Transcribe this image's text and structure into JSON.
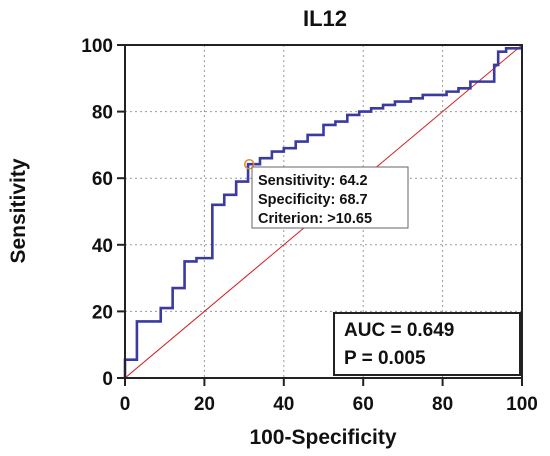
{
  "chart_data": {
    "type": "line",
    "title": "IL12",
    "xlabel": "100-Specificity",
    "ylabel": "Sensitivity",
    "xlim": [
      0,
      100
    ],
    "ylim": [
      0,
      100
    ],
    "x_ticks": [
      0,
      20,
      40,
      60,
      80,
      100
    ],
    "y_ticks": [
      0,
      20,
      40,
      60,
      80,
      100
    ],
    "grid": true,
    "colors": {
      "roc": "#3a3aa0",
      "reference": "#d62020",
      "marker": "#e08a2a"
    },
    "series": [
      {
        "x": [
          0,
          0,
          3,
          3,
          9,
          9,
          12,
          12,
          15,
          15,
          18,
          18,
          22,
          22,
          25,
          25,
          28,
          28,
          31,
          31,
          34,
          34,
          37,
          37,
          40,
          40,
          43,
          43,
          46,
          46,
          50,
          50,
          53,
          53,
          56,
          56,
          59,
          59,
          62,
          62,
          65,
          65,
          68,
          68,
          72,
          72,
          75,
          75,
          81,
          81,
          84,
          84,
          87,
          87,
          93,
          93,
          94,
          94,
          96,
          96,
          100
        ],
        "y": [
          0,
          5.5,
          5.5,
          17,
          17,
          21,
          21,
          27,
          27,
          35,
          35,
          36,
          36,
          52,
          52,
          55,
          55,
          59,
          59,
          64.2,
          64.2,
          66,
          66,
          68,
          68,
          69,
          69,
          71,
          71,
          73,
          73,
          76,
          76,
          77,
          77,
          79,
          79,
          80,
          80,
          81,
          81,
          82,
          82,
          83,
          83,
          84,
          84,
          85,
          85,
          86,
          86,
          87,
          87,
          89,
          89,
          94,
          94,
          98,
          98,
          99,
          99
        ]
      },
      {
        "x": [
          0,
          100
        ],
        "y": [
          0,
          100
        ]
      }
    ],
    "optimal_point": {
      "x": 31.3,
      "y": 64.2
    },
    "annotation": [
      "Sensitivity: 64.2",
      "Specificity: 68.7",
      "Criterion: >10.65"
    ],
    "stats": {
      "auc": "AUC = 0.649",
      "p": "P = 0.005"
    }
  }
}
